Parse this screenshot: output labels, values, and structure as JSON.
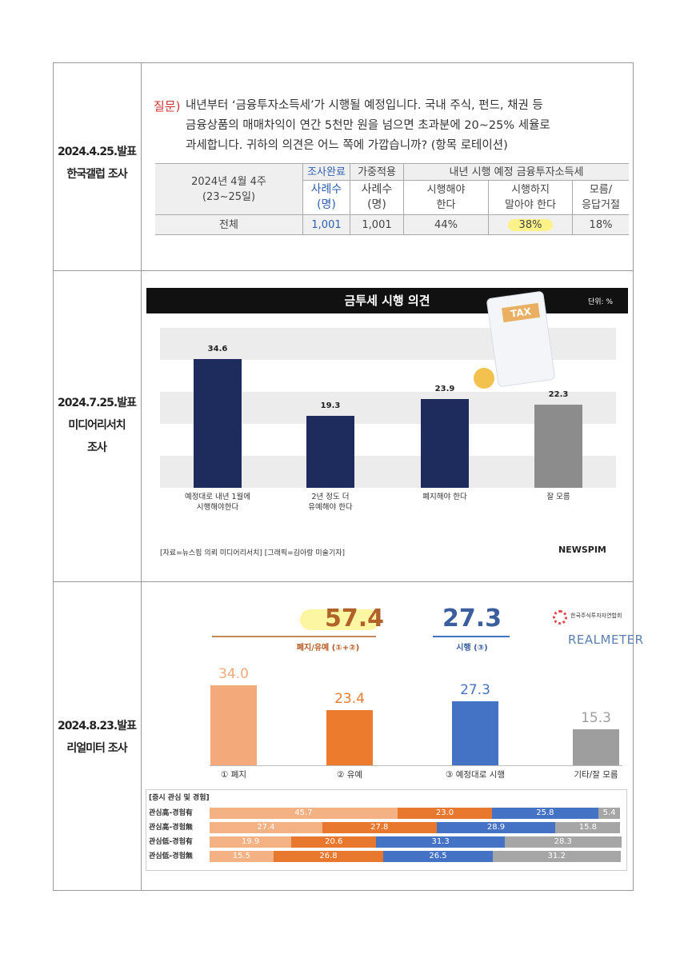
{
  "rows": [
    {
      "label": "2024.4.25.발표\n한국갤럽 조사",
      "question_label": "질문)",
      "question": "내년부터 ‘금융투자소득세’가 시행될 예정입니다. 국내 주식, 펀드, 채권 등\n금융상품의 매매차익이 연간 5천만 원을 넘으면 초과분에 20~25% 세율로\n과세합니다. 귀하의 의견은 어느 쪽에 가깝습니까? (항목 로테이션)",
      "table": {
        "corner": "2024년 4월 4주\n(23~25일)",
        "group": "내년 시행 예정 금융투자소득세",
        "columns": [
          {
            "top": "조사완료",
            "bottom": "사례수\n(명)"
          },
          {
            "top": "가중적용",
            "bottom": "사례수\n(명)"
          }
        ],
        "answers": [
          "시행해야\n한다",
          "시행하지\n말아야 한다",
          "모름/\n응답거절"
        ],
        "row": [
          "전체",
          "1,001",
          "1,001",
          "44%",
          "38%",
          "18%"
        ]
      }
    },
    {
      "label": "2024.7.25.발표\n미디어리서치\n조사",
      "chart": {
        "type": "bar",
        "title": "금투세 시행 의견",
        "unit": "단위: %",
        "icon_text": "TAX",
        "categories": [
          "예정대로 내년 1월에\n시행해야한다",
          "2년 정도 더\n유예해야 한다",
          "폐지해야 한다",
          "잘 모름"
        ],
        "values": [
          34.6,
          19.3,
          23.9,
          22.3
        ],
        "colors": [
          "#1d2c5c",
          "#1d2c5c",
          "#1d2c5c",
          "#8c8c8c"
        ],
        "ylim": [
          0,
          40
        ],
        "source": "[자료=뉴스핌 의뢰 미디어리서치] [그래픽=김아랑 미술기자]",
        "brand": "NEWSPIM"
      }
    },
    {
      "label": "2024.8.23.발표\n리얼미터 조사",
      "summary": [
        {
          "value": "57.4",
          "label": "폐지/유예 (①+②)"
        },
        {
          "value": "27.3",
          "label": "시행 (③)"
        }
      ],
      "org": "한국주식투자자연합회",
      "brand": "REALMETER",
      "chart": {
        "type": "bar",
        "categories": [
          "① 폐지",
          "② 유예",
          "③ 예정대로 시행",
          "기타/잘 모름"
        ],
        "values": [
          34.0,
          23.4,
          27.3,
          15.3
        ],
        "value_labels": [
          "34.0",
          "23.4",
          "27.3",
          "15.3"
        ],
        "colors": [
          "#f4a97a",
          "#ec7b2d",
          "#4472c4",
          "#9e9e9e"
        ],
        "ylim": [
          0,
          45
        ]
      },
      "stacked": {
        "type": "stacked-bar",
        "title": "[증시 관심 및 경험]",
        "categories": [
          "관심高-경험有",
          "관심高-경험無",
          "관심低-경험有",
          "관심低-경험無"
        ],
        "xlim": [
          0,
          100
        ],
        "series": [
          {
            "color": "#f4b183",
            "values": [
              45.7,
              27.4,
              19.9,
              15.5
            ]
          },
          {
            "color": "#e8782e",
            "values": [
              23.0,
              27.8,
              20.6,
              26.8
            ],
            "value_labels": [
              "23.0",
              "27.8",
              "20.6",
              "26.8"
            ]
          },
          {
            "color": "#4472c4",
            "values": [
              25.8,
              28.9,
              31.3,
              26.5
            ]
          },
          {
            "color": "#a6a6a6",
            "values": [
              5.4,
              15.8,
              28.3,
              31.2
            ]
          }
        ]
      }
    }
  ]
}
